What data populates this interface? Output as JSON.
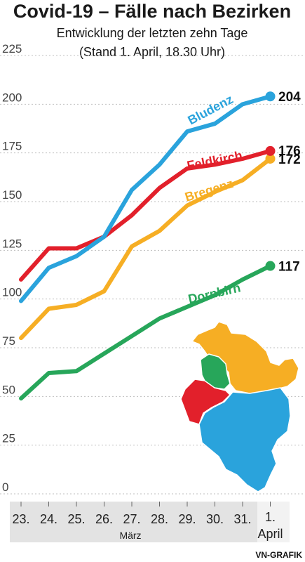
{
  "header": {
    "title": "Covid-19 – Fälle nach Bezirken",
    "subtitle_line1": "Entwicklung der letzten zehn Tage",
    "subtitle_line2": "(Stand 1. April, 18.30 Uhr)"
  },
  "credit": "VN-GRAFIK",
  "month_label": "März",
  "colors": {
    "Bludenz": "#2aa3dc",
    "Feldkirch": "#e2202b",
    "Bregenz": "#f6ae24",
    "Dornbirn": "#27a65a",
    "grid": "#bfbfbf",
    "axis_band": "#e3e3e3",
    "axis_band_last": "#f2f2f2"
  },
  "chart_data": {
    "type": "line",
    "title": "Covid-19 – Fälle nach Bezirken",
    "subtitle": "Entwicklung der letzten zehn Tage (Stand 1. April, 18.30 Uhr)",
    "xlabel": "",
    "ylabel": "",
    "categories": [
      "23.",
      "24.",
      "25.",
      "26.",
      "27.",
      "28.",
      "29.",
      "30.",
      "31.",
      "1. April"
    ],
    "ylim": [
      0,
      225
    ],
    "yticks": [
      "0",
      "25",
      "50",
      "75",
      "100",
      "125",
      "150",
      "175",
      "200",
      "225"
    ],
    "grid": true,
    "series": [
      {
        "name": "Bludenz",
        "values": [
          99,
          116,
          122,
          132,
          156,
          169,
          186,
          190,
          200,
          204
        ],
        "end_label": "204"
      },
      {
        "name": "Feldkirch",
        "values": [
          110,
          126,
          126,
          132,
          143,
          157,
          167,
          169,
          172,
          176
        ],
        "end_label": "176"
      },
      {
        "name": "Bregenz",
        "values": [
          80,
          95,
          97,
          104,
          127,
          135,
          148,
          155,
          161,
          172
        ],
        "end_label": "172"
      },
      {
        "name": "Dornbirn",
        "values": [
          49,
          62,
          63,
          72,
          81,
          90,
          96,
          102,
          110,
          117
        ],
        "end_label": "117"
      }
    ]
  },
  "map": {
    "regions": [
      "Bregenz",
      "Dornbirn",
      "Feldkirch",
      "Bludenz"
    ]
  }
}
